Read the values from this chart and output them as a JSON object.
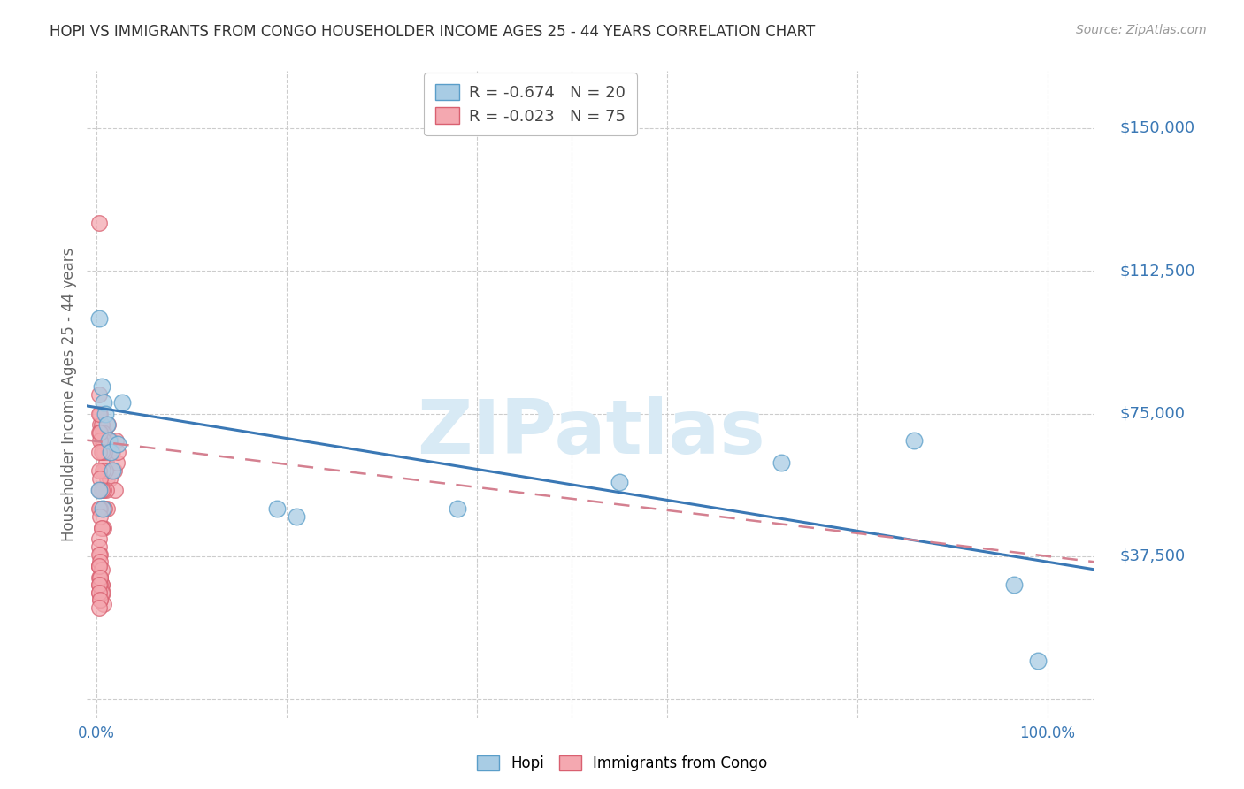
{
  "title": "HOPI VS IMMIGRANTS FROM CONGO HOUSEHOLDER INCOME AGES 25 - 44 YEARS CORRELATION CHART",
  "source": "Source: ZipAtlas.com",
  "ylabel": "Householder Income Ages 25 - 44 years",
  "background_color": "#ffffff",
  "grid_color": "#cccccc",
  "y_ticks": [
    0,
    37500,
    75000,
    112500,
    150000
  ],
  "y_tick_labels": [
    "",
    "$37,500",
    "$75,000",
    "$112,500",
    "$150,000"
  ],
  "ylim": [
    -5000,
    165000
  ],
  "xlim": [
    -0.01,
    1.05
  ],
  "hopi_color": "#a8cce4",
  "congo_color": "#f4a8b0",
  "hopi_edge": "#5a9ec9",
  "congo_edge": "#d96070",
  "hopi_R": -0.674,
  "hopi_N": 20,
  "congo_R": -0.023,
  "congo_N": 75,
  "hopi_line_color": "#3a78b5",
  "congo_line_color": "#d48090",
  "label_color": "#3a78b5",
  "watermark_color": "#d8eaf5",
  "watermark": "ZIPatlas",
  "hopi_x": [
    0.003,
    0.005,
    0.007,
    0.009,
    0.011,
    0.013,
    0.015,
    0.017,
    0.022,
    0.027,
    0.003,
    0.006,
    0.19,
    0.21,
    0.38,
    0.55,
    0.72,
    0.86,
    0.965,
    0.99
  ],
  "hopi_y": [
    100000,
    82000,
    78000,
    75000,
    72000,
    68000,
    65000,
    60000,
    67000,
    78000,
    55000,
    50000,
    50000,
    48000,
    50000,
    57000,
    62000,
    68000,
    30000,
    10000
  ],
  "congo_x": [
    0.003,
    0.004,
    0.005,
    0.006,
    0.007,
    0.008,
    0.009,
    0.01,
    0.011,
    0.012,
    0.013,
    0.014,
    0.015,
    0.016,
    0.017,
    0.018,
    0.019,
    0.02,
    0.021,
    0.022,
    0.003,
    0.004,
    0.005,
    0.006,
    0.007,
    0.008,
    0.009,
    0.01,
    0.011,
    0.003,
    0.004,
    0.005,
    0.006,
    0.007,
    0.008,
    0.003,
    0.004,
    0.005,
    0.006,
    0.007,
    0.003,
    0.004,
    0.005,
    0.003,
    0.004,
    0.003,
    0.003,
    0.004,
    0.005,
    0.006,
    0.007,
    0.003,
    0.004,
    0.005,
    0.003,
    0.003,
    0.004,
    0.003,
    0.004,
    0.005,
    0.003,
    0.004,
    0.005,
    0.003,
    0.003,
    0.004,
    0.003,
    0.004,
    0.005,
    0.003,
    0.004,
    0.003,
    0.003,
    0.004,
    0.003
  ],
  "congo_y": [
    125000,
    72000,
    68000,
    65000,
    60000,
    70000,
    68000,
    62000,
    58000,
    72000,
    65000,
    58000,
    68000,
    60000,
    65000,
    60000,
    55000,
    68000,
    62000,
    65000,
    80000,
    75000,
    72000,
    70000,
    68000,
    65000,
    60000,
    55000,
    50000,
    70000,
    68000,
    65000,
    60000,
    55000,
    50000,
    60000,
    58000,
    55000,
    50000,
    45000,
    55000,
    50000,
    45000,
    75000,
    70000,
    65000,
    35000,
    32000,
    30000,
    28000,
    25000,
    50000,
    48000,
    45000,
    42000,
    40000,
    38000,
    35000,
    32000,
    30000,
    38000,
    36000,
    34000,
    30000,
    28000,
    26000,
    32000,
    30000,
    28000,
    35000,
    32000,
    30000,
    28000,
    26000,
    24000
  ]
}
